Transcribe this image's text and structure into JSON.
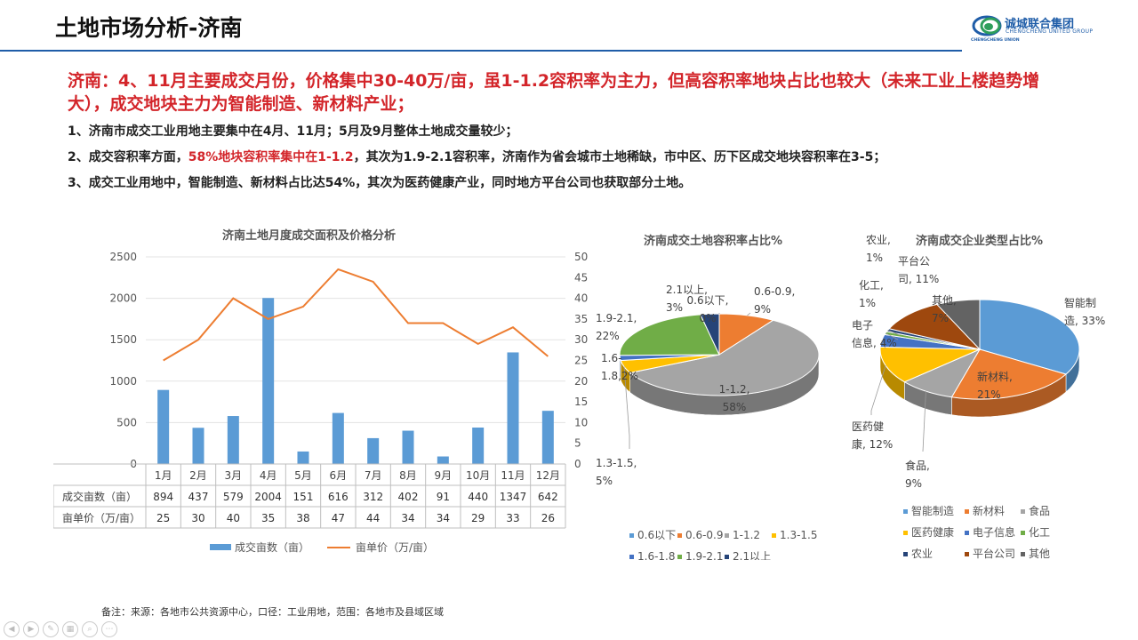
{
  "header": {
    "title": "土地市场分析-济南",
    "logo_text": "诚城联合集团",
    "logo_sub": "CHENGCHENG UNITED GROUP",
    "logo_ring_text": "CHENGCHENG UNION"
  },
  "headline": "济南：4、11月主要成交月份，价格集中30-40万/亩，虽1-1.2容积率为主力，但高容积率地块占比也较大（未来工业上楼趋势增大），成交地块主力为智能制造、新材料产业；",
  "points": {
    "p1": "1、济南市成交工业用地主要集中在4月、11月；5月及9月整体土地成交量较少；",
    "p2_a": "2、成交容积率方面，",
    "p2_red": "58%地块容积率集中在1-1.2",
    "p2_b": "，其次为1.9-2.1容积率，济南作为省会城市土地稀缺，市中区、历下区成交地块容积率在3-5；",
    "p3": "3、成交工业用地中，智能制造、新材料占比达54%，其次为医药健康产业，同时地方平台公司也获取部分土地。"
  },
  "note": "备注：来源：各地市公共资源中心，口径：工业用地，范围：各地市及县域区域",
  "colors": {
    "title_rule": "#1f5da8",
    "headline": "#d3252a",
    "bar": "#5b9bd5",
    "line": "#ed7d31"
  },
  "chart_data": [
    {
      "type": "bar",
      "title": "济南土地月度成交面积及价格分析",
      "categories": [
        "1月",
        "2月",
        "3月",
        "4月",
        "5月",
        "6月",
        "7月",
        "8月",
        "9月",
        "10月",
        "11月",
        "12月"
      ],
      "series": [
        {
          "name": "成交亩数（亩）",
          "type": "bar",
          "axis": "left",
          "color": "#5b9bd5",
          "values": [
            894,
            437,
            579,
            2004,
            151,
            616,
            312,
            402,
            91,
            440,
            1347,
            642
          ]
        },
        {
          "name": "亩单价（万/亩）",
          "type": "line",
          "axis": "right",
          "color": "#ed7d31",
          "values": [
            25,
            30,
            40,
            35,
            38,
            47,
            44,
            34,
            34,
            29,
            33,
            26
          ]
        }
      ],
      "left_ticks": [
        "0",
        "500",
        "1000",
        "1500",
        "2000",
        "2500"
      ],
      "right_ticks": [
        "0",
        "5",
        "10",
        "15",
        "20",
        "25",
        "30",
        "35",
        "40",
        "45",
        "50"
      ],
      "ylim_left": [
        0,
        2500
      ],
      "ylim_right": [
        0,
        50
      ],
      "legend": "bottom",
      "data_table": true
    },
    {
      "type": "pie",
      "title": "济南成交土地容积率占比%",
      "labels": [
        "0.6以下",
        "0.6-0.9",
        "1-1.2",
        "1.3-1.5",
        "1.6-1.8",
        "1.9-2.1",
        "2.1以上"
      ],
      "values": [
        0,
        9,
        58,
        5,
        2,
        22,
        3
      ],
      "colors": [
        "#5b9bd5",
        "#ed7d31",
        "#a5a5a5",
        "#ffc000",
        "#4472c4",
        "#70ad47",
        "#264478"
      ],
      "legend": "bottom"
    },
    {
      "type": "pie",
      "title": "济南成交企业类型占比%",
      "labels": [
        "智能制造",
        "新材料",
        "食品",
        "医药健康",
        "电子信息",
        "化工",
        "农业",
        "平台公司",
        "其他"
      ],
      "values": [
        33,
        21,
        9,
        12,
        4,
        1,
        1,
        11,
        7
      ],
      "colors": [
        "#5b9bd5",
        "#ed7d31",
        "#a5a5a5",
        "#ffc000",
        "#4472c4",
        "#70ad47",
        "#264478",
        "#9e480e",
        "#636363"
      ],
      "legend": "bottom"
    }
  ]
}
